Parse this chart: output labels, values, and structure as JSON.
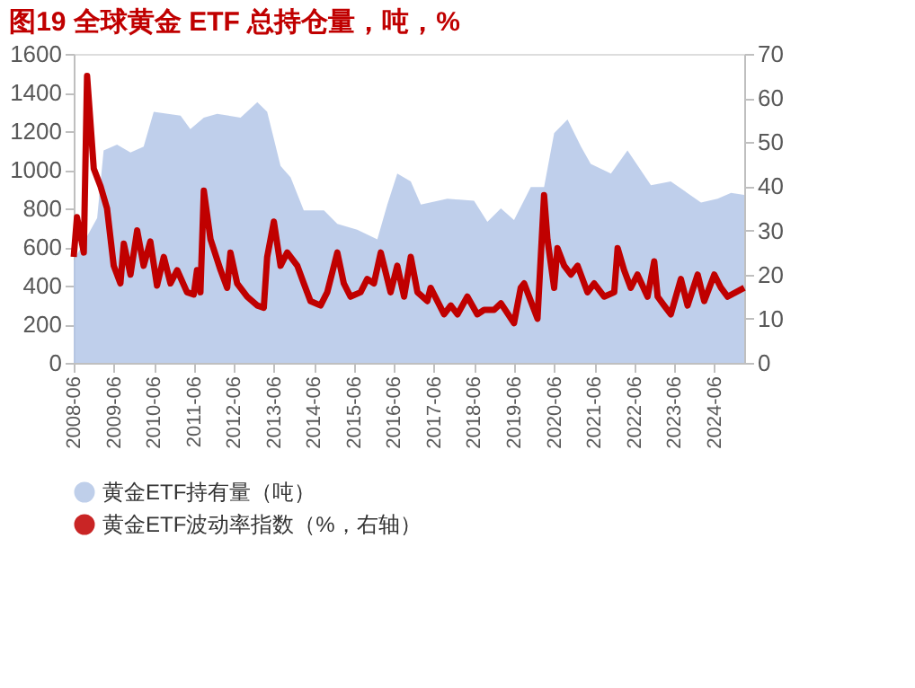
{
  "chart_data": {
    "type": "area",
    "title": "图19  全球黄金 ETF 总持仓量，吨，%",
    "xlim": [
      "2008-06",
      "2025-03"
    ],
    "xticks": [
      "2008-06",
      "2009-06",
      "2010-06",
      "2011-06",
      "2012-06",
      "2013-06",
      "2014-06",
      "2015-06",
      "2016-06",
      "2017-06",
      "2018-06",
      "2019-06",
      "2020-06",
      "2021-06",
      "2022-06",
      "2023-06",
      "2024-06"
    ],
    "ylim": [
      0,
      1600
    ],
    "yticks": [
      0,
      200,
      400,
      600,
      800,
      1000,
      1200,
      1400,
      1600
    ],
    "y2lim": [
      0,
      70
    ],
    "y2ticks": [
      0,
      10,
      20,
      30,
      40,
      50,
      60,
      70
    ],
    "grid": false,
    "legend": "bottom",
    "series": [
      {
        "name": "黄金ETF持有量（吨）",
        "color": "#b4c7e7",
        "x": [
          "2008-06",
          "2009-01",
          "2009-03",
          "2009-07",
          "2009-11",
          "2010-03",
          "2010-06",
          "2011-02",
          "2011-05",
          "2011-09",
          "2012-01",
          "2012-08",
          "2013-01",
          "2013-04",
          "2013-08",
          "2013-11",
          "2014-03",
          "2014-09",
          "2015-01",
          "2015-07",
          "2016-01",
          "2016-04",
          "2016-07",
          "2016-11",
          "2017-02",
          "2017-10",
          "2018-06",
          "2018-10",
          "2019-02",
          "2019-06",
          "2019-11",
          "2020-03",
          "2020-06",
          "2020-10",
          "2021-02",
          "2021-05",
          "2021-11",
          "2022-04",
          "2022-11",
          "2023-05",
          "2024-02",
          "2024-07",
          "2024-11",
          "2025-03"
        ],
        "values": [
          530,
          750,
          1100,
          1130,
          1090,
          1120,
          1300,
          1280,
          1210,
          1270,
          1290,
          1270,
          1350,
          1300,
          1020,
          960,
          790,
          790,
          720,
          690,
          640,
          820,
          980,
          940,
          820,
          850,
          840,
          730,
          800,
          740,
          910,
          910,
          1190,
          1260,
          1120,
          1030,
          980,
          1100,
          920,
          940,
          830,
          850,
          880,
          870
        ]
      },
      {
        "name": "黄金ETF波动率指数（%，右轴）",
        "type": "line",
        "axis": "y2",
        "color": "#c00000",
        "line_style": "solid",
        "x": [
          "2008-06",
          "2008-07",
          "2008-09",
          "2008-10",
          "2008-12",
          "2009-02",
          "2009-04",
          "2009-06",
          "2009-08",
          "2009-09",
          "2009-11",
          "2010-01",
          "2010-03",
          "2010-05",
          "2010-07",
          "2010-09",
          "2010-11",
          "2011-01",
          "2011-04",
          "2011-06",
          "2011-07",
          "2011-08",
          "2011-09",
          "2011-11",
          "2012-02",
          "2012-04",
          "2012-05",
          "2012-07",
          "2012-10",
          "2013-01",
          "2013-03",
          "2013-04",
          "2013-06",
          "2013-08",
          "2013-10",
          "2014-01",
          "2014-03",
          "2014-05",
          "2014-08",
          "2014-10",
          "2015-01",
          "2015-03",
          "2015-05",
          "2015-08",
          "2015-10",
          "2015-12",
          "2016-02",
          "2016-05",
          "2016-07",
          "2016-09",
          "2016-11",
          "2017-01",
          "2017-04",
          "2017-05",
          "2017-09",
          "2017-11",
          "2018-01",
          "2018-04",
          "2018-07",
          "2018-09",
          "2018-12",
          "2019-02",
          "2019-06",
          "2019-08",
          "2019-09",
          "2019-11",
          "2020-01",
          "2020-03",
          "2020-04",
          "2020-06",
          "2020-07",
          "2020-09",
          "2020-11",
          "2021-01",
          "2021-04",
          "2021-06",
          "2021-09",
          "2021-12",
          "2022-01",
          "2022-03",
          "2022-05",
          "2022-07",
          "2022-10",
          "2022-12",
          "2023-01",
          "2023-03",
          "2023-05",
          "2023-08",
          "2023-10",
          "2024-01",
          "2024-03",
          "2024-06",
          "2024-08",
          "2024-10",
          "2025-03"
        ],
        "values": [
          24,
          33,
          25,
          65,
          44,
          40,
          35,
          22,
          18,
          27,
          20,
          30,
          22,
          27.5,
          17.5,
          24,
          18,
          21,
          16,
          15.5,
          21,
          16,
          39,
          28,
          21,
          17,
          25,
          18,
          15,
          13,
          12.5,
          24,
          32,
          22,
          25,
          22,
          18,
          14,
          13,
          16,
          25,
          18,
          15,
          16,
          19,
          18,
          25,
          16,
          22,
          15,
          24,
          16,
          14,
          17,
          11,
          13,
          11,
          15,
          11,
          12,
          12,
          13.5,
          9,
          17,
          18,
          14,
          10,
          38,
          28,
          17,
          26,
          22,
          20,
          22,
          16,
          18,
          15,
          16,
          26,
          21,
          17,
          20,
          15,
          23,
          15,
          13,
          11,
          19,
          13,
          20,
          14,
          20,
          17,
          15,
          17
        ]
      }
    ]
  }
}
